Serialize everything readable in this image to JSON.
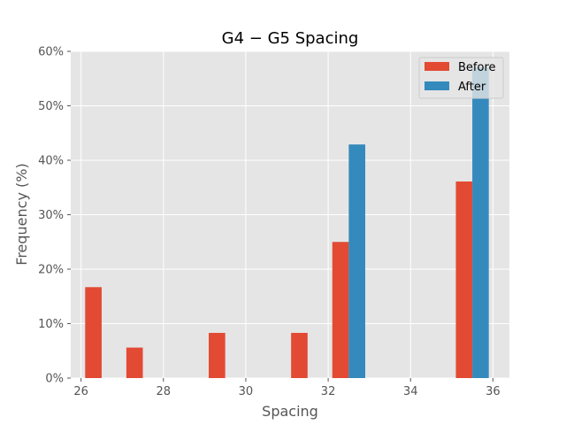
{
  "chart_data": {
    "type": "bar",
    "title": "G4 − G5 Spacing",
    "xlabel": "Spacing",
    "ylabel": "Frequency (%)",
    "xlim": [
      25.75,
      36.4
    ],
    "ylim": [
      0,
      60
    ],
    "xticks": [
      26,
      28,
      30,
      32,
      34,
      36
    ],
    "yticks": [
      0,
      10,
      20,
      30,
      40,
      50,
      60
    ],
    "ytick_suffix": "%",
    "grid": true,
    "legend_position": "top-right",
    "bin_width": 0.4,
    "series": [
      {
        "name": "Before",
        "color": "#e24a33",
        "bars": [
          {
            "x": 26.3,
            "value": 16.7
          },
          {
            "x": 27.3,
            "value": 5.6
          },
          {
            "x": 29.3,
            "value": 8.3
          },
          {
            "x": 31.3,
            "value": 8.3
          },
          {
            "x": 32.3,
            "value": 25.0
          },
          {
            "x": 35.3,
            "value": 36.1
          }
        ]
      },
      {
        "name": "After",
        "color": "#348abd",
        "bars": [
          {
            "x": 32.7,
            "value": 42.9
          },
          {
            "x": 35.7,
            "value": 57.1
          }
        ]
      }
    ]
  }
}
